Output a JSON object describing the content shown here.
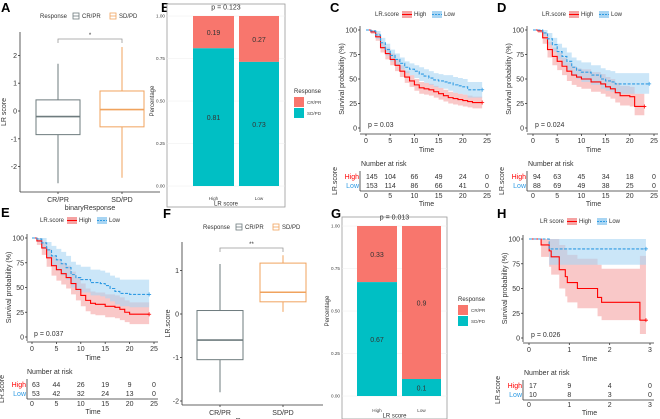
{
  "chart_data": [
    {
      "type": "box",
      "panel_label": "A",
      "legend_title": "Response",
      "categories": [
        "CR/PR",
        "SD/PD"
      ],
      "xlabel": "binaryResponse",
      "ylabel": "LR score",
      "yticks": [
        -2,
        -1,
        0,
        1,
        2
      ],
      "significance": "*",
      "colors": [
        "#6E7B7E",
        "#F0A35E"
      ],
      "boxes": [
        {
          "min": -2.6,
          "q1": -0.85,
          "median": -0.2,
          "q3": 0.4,
          "max": 1.7
        },
        {
          "min": -2.4,
          "q1": -0.57,
          "median": 0.05,
          "q3": 0.72,
          "max": 2.3
        }
      ]
    },
    {
      "type": "bar",
      "stacked": true,
      "panel_label": "B",
      "p_text": "p = 0.123",
      "categories": [
        "High",
        "Low"
      ],
      "xlabel": "LR score",
      "ylabel": "Percentage",
      "yticks": [
        "0.00",
        "0.25",
        "0.50",
        "0.75",
        "1.00"
      ],
      "legend_title": "Response",
      "series": [
        {
          "name": "CR/PR",
          "values": [
            0.19,
            0.27
          ],
          "color": "#F8766D"
        },
        {
          "name": "SD/PD",
          "values": [
            0.81,
            0.73
          ],
          "color": "#00BFC4"
        }
      ]
    },
    {
      "type": "line",
      "panel_label": "C",
      "legend_title": "LR.score",
      "xlabel": "Time",
      "ylabel": "Survival probability (%)",
      "xticks": [
        0,
        5,
        10,
        15,
        20,
        25
      ],
      "yticks": [
        0,
        25,
        50,
        75,
        100
      ],
      "xlim": [
        0,
        25
      ],
      "p_text": "p = 0.03",
      "risk_title": "Number at risk",
      "risk_ylabel": "LR.score",
      "series": [
        {
          "name": "High",
          "color": "#FF0000",
          "band": "#F5A3A3",
          "dashed": false,
          "t": [
            0,
            1,
            2,
            3,
            4,
            5,
            6,
            7,
            8,
            9,
            10,
            11,
            12,
            13,
            14,
            15,
            16,
            17,
            18,
            19,
            20,
            21,
            22,
            24
          ],
          "s": [
            100,
            98,
            93,
            82,
            76,
            70,
            64,
            58,
            52,
            48,
            44,
            41,
            40,
            39,
            37,
            35,
            33,
            31,
            30,
            29,
            28,
            27,
            26,
            26
          ],
          "lower": [
            100,
            96,
            89,
            77,
            70,
            64,
            58,
            52,
            46,
            42,
            38,
            35,
            34,
            33,
            31,
            29,
            27,
            25,
            24,
            23,
            22,
            21,
            20,
            20
          ],
          "upper": [
            100,
            100,
            97,
            87,
            82,
            76,
            70,
            64,
            58,
            54,
            50,
            47,
            46,
            45,
            43,
            41,
            39,
            37,
            36,
            35,
            34,
            33,
            32,
            32
          ],
          "risk": [
            145,
            104,
            66,
            49,
            24,
            0
          ]
        },
        {
          "name": "Low",
          "color": "#2F9BE3",
          "band": "#A8D5F3",
          "dashed": true,
          "t": [
            0,
            1,
            2,
            3,
            4,
            5,
            6,
            7,
            8,
            9,
            10,
            11,
            12,
            13,
            14,
            15,
            16,
            17,
            18,
            19,
            20,
            21,
            24
          ],
          "s": [
            100,
            99,
            95,
            87,
            80,
            74,
            70,
            66,
            62,
            60,
            58,
            55,
            53,
            51,
            49,
            48,
            47,
            46,
            44,
            43,
            42,
            39,
            39
          ],
          "lower": [
            100,
            97,
            91,
            82,
            74,
            68,
            64,
            60,
            56,
            54,
            51,
            48,
            46,
            44,
            42,
            41,
            40,
            38,
            36,
            35,
            34,
            31,
            31
          ],
          "upper": [
            100,
            100,
            99,
            92,
            86,
            80,
            76,
            72,
            68,
            66,
            64,
            62,
            60,
            58,
            56,
            55,
            54,
            54,
            52,
            51,
            50,
            47,
            47
          ],
          "risk": [
            153,
            114,
            86,
            66,
            41,
            0
          ]
        }
      ]
    },
    {
      "type": "line",
      "panel_label": "D",
      "legend_title": "LR.score",
      "xlabel": "Time",
      "ylabel": "Survival probability (%)",
      "xticks": [
        0,
        5,
        10,
        15,
        20,
        25
      ],
      "yticks": [
        0,
        25,
        50,
        75,
        100
      ],
      "xlim": [
        0,
        25
      ],
      "p_text": "p = 0.024",
      "risk_title": "Number at risk",
      "risk_ylabel": "LR.score",
      "series": [
        {
          "name": "High",
          "color": "#FF0000",
          "band": "#F5A3A3",
          "dashed": false,
          "t": [
            0,
            1,
            2,
            3,
            4,
            5,
            6,
            7,
            8,
            9,
            10,
            12,
            14,
            15,
            16,
            17,
            18,
            20,
            21,
            23
          ],
          "s": [
            100,
            99,
            92,
            80,
            73,
            68,
            63,
            58,
            54,
            52,
            50,
            47,
            45,
            42,
            40,
            36,
            33,
            32,
            22,
            22
          ],
          "lower": [
            100,
            97,
            86,
            72,
            64,
            59,
            54,
            48,
            44,
            42,
            40,
            37,
            35,
            32,
            30,
            26,
            23,
            22,
            13,
            13
          ],
          "upper": [
            100,
            100,
            97,
            88,
            82,
            77,
            72,
            67,
            63,
            61,
            60,
            57,
            55,
            52,
            50,
            46,
            43,
            42,
            35,
            35
          ],
          "risk": [
            94,
            63,
            45,
            34,
            18,
            0
          ]
        },
        {
          "name": "Low",
          "color": "#2F9BE3",
          "band": "#A8D5F3",
          "dashed": true,
          "t": [
            0,
            2,
            3,
            4,
            5,
            6,
            7,
            8,
            9,
            10,
            12,
            14,
            15,
            16,
            17,
            24
          ],
          "s": [
            100,
            97,
            91,
            85,
            78,
            73,
            68,
            62,
            59,
            57,
            54,
            50,
            48,
            47,
            45,
            45
          ],
          "lower": [
            100,
            94,
            85,
            78,
            70,
            64,
            59,
            53,
            50,
            47,
            44,
            40,
            38,
            37,
            35,
            35
          ],
          "upper": [
            100,
            100,
            97,
            92,
            86,
            82,
            77,
            72,
            69,
            67,
            64,
            61,
            59,
            58,
            56,
            56
          ],
          "risk": [
            88,
            69,
            49,
            38,
            25,
            0
          ]
        }
      ]
    },
    {
      "type": "line",
      "panel_label": "E",
      "legend_title": "LR.score",
      "xlabel": "Time",
      "ylabel": "Survival probability (%)",
      "xticks": [
        0,
        5,
        10,
        15,
        20,
        25
      ],
      "yticks": [
        0,
        25,
        50,
        75,
        100
      ],
      "xlim": [
        0,
        25
      ],
      "p_text": "p = 0.037",
      "risk_title": "Number at risk",
      "risk_ylabel": "LR.score",
      "series": [
        {
          "name": "High",
          "color": "#FF0000",
          "band": "#F5A3A3",
          "dashed": false,
          "t": [
            0,
            1,
            2,
            3,
            4,
            5,
            6,
            7,
            8,
            9,
            10,
            11,
            12,
            13,
            15,
            17,
            18,
            19,
            20,
            24
          ],
          "s": [
            100,
            97,
            90,
            80,
            72,
            68,
            64,
            60,
            54,
            48,
            42,
            37,
            34,
            33,
            31,
            30,
            28,
            25,
            23,
            23
          ],
          "lower": [
            100,
            93,
            83,
            71,
            62,
            57,
            53,
            49,
            43,
            37,
            31,
            26,
            23,
            22,
            20,
            19,
            17,
            15,
            13,
            13
          ],
          "upper": [
            100,
            100,
            96,
            89,
            82,
            79,
            75,
            72,
            66,
            60,
            54,
            49,
            46,
            45,
            43,
            42,
            40,
            37,
            35,
            35
          ],
          "risk": [
            63,
            44,
            26,
            19,
            9,
            0
          ]
        },
        {
          "name": "Low",
          "color": "#2F9BE3",
          "band": "#A8D5F3",
          "dashed": true,
          "t": [
            0,
            1,
            2,
            3,
            4,
            5,
            6,
            7,
            8,
            9,
            10,
            12,
            14,
            15,
            16,
            17,
            18,
            20,
            24
          ],
          "s": [
            100,
            99,
            95,
            88,
            82,
            78,
            74,
            70,
            63,
            60,
            58,
            55,
            54,
            52,
            49,
            46,
            44,
            43,
            43
          ],
          "lower": [
            100,
            96,
            89,
            80,
            72,
            67,
            62,
            58,
            50,
            47,
            45,
            42,
            41,
            39,
            36,
            33,
            31,
            30,
            30
          ],
          "upper": [
            100,
            100,
            100,
            96,
            92,
            89,
            86,
            82,
            76,
            73,
            71,
            68,
            67,
            65,
            62,
            60,
            58,
            58,
            58
          ],
          "risk": [
            53,
            42,
            32,
            24,
            13,
            0
          ]
        }
      ]
    },
    {
      "type": "box",
      "panel_label": "F",
      "legend_title": "Response",
      "categories": [
        "CR/PR",
        "SD/PD"
      ],
      "xlabel": "Response",
      "ylabel": "LR.score",
      "yticks": [
        -2,
        -1,
        0,
        1
      ],
      "significance": "**",
      "colors": [
        "#6E7B7E",
        "#F0A35E"
      ],
      "boxes": [
        {
          "min": -1.8,
          "q1": -1.05,
          "median": -0.6,
          "q3": 0.08,
          "max": 1.15
        },
        {
          "min": 0.05,
          "q1": 0.28,
          "median": 0.5,
          "q3": 1.17,
          "max": 1.35
        }
      ]
    },
    {
      "type": "bar",
      "stacked": true,
      "panel_label": "G",
      "p_text": "p = 0.013",
      "categories": [
        "High",
        "Low"
      ],
      "xlabel": "LR score",
      "ylabel": "Percentage",
      "yticks": [
        "0.00",
        "0.25",
        "0.50",
        "0.75",
        "1.00"
      ],
      "legend_title": "Response",
      "series": [
        {
          "name": "CR/PR",
          "values": [
            0.33,
            0.9
          ],
          "color": "#F8766D"
        },
        {
          "name": "SD/PD",
          "values": [
            0.67,
            0.1
          ],
          "color": "#00BFC4"
        }
      ]
    },
    {
      "type": "line",
      "panel_label": "H",
      "legend_title": "LR score",
      "xlabel": "Time",
      "ylabel": "Survival probability (%)",
      "xticks": [
        0,
        1,
        2,
        3
      ],
      "yticks": [
        0,
        25,
        50,
        75,
        100
      ],
      "xlim": [
        0,
        3
      ],
      "p_text": "p = 0.026",
      "risk_title": "Number at risk",
      "risk_ylabel": "LR.score",
      "series": [
        {
          "name": "High",
          "color": "#FF0000",
          "band": "#F5A3A3",
          "dashed": false,
          "t": [
            0,
            0.3,
            0.5,
            0.55,
            0.75,
            0.9,
            0.95,
            1.2,
            1.7,
            1.8,
            2.75,
            2.9
          ],
          "s": [
            100,
            94,
            88,
            82,
            69,
            62,
            56,
            50,
            41,
            36,
            18,
            18
          ],
          "lower": [
            100,
            82,
            72,
            64,
            50,
            42,
            36,
            30,
            22,
            18,
            4,
            4
          ],
          "upper": [
            100,
            100,
            100,
            100,
            94,
            89,
            84,
            80,
            74,
            70,
            83,
            83
          ],
          "risk": [
            17,
            9,
            4,
            0
          ]
        },
        {
          "name": "Low",
          "color": "#2F9BE3",
          "band": "#A8D5F3",
          "dashed": true,
          "t": [
            0,
            0.5,
            2.9
          ],
          "s": [
            100,
            90,
            90
          ],
          "lower": [
            100,
            74,
            74
          ],
          "upper": [
            100,
            100,
            100
          ],
          "risk": [
            10,
            8,
            3,
            0
          ]
        }
      ]
    }
  ]
}
